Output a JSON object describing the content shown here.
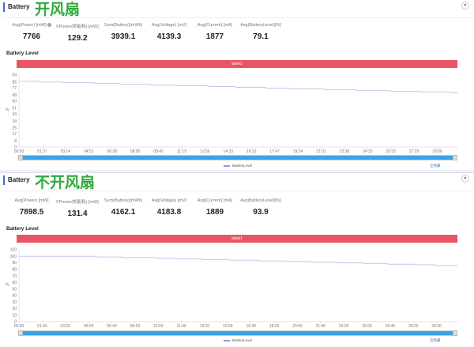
{
  "panels": [
    {
      "title": "Battery",
      "annotation": "开风扇",
      "stats": [
        {
          "label": "Avg(Power) [mW]",
          "value": "7766",
          "help_icon": "question-circle-icon"
        },
        {
          "label": "FPower(帧能耗) [mW]",
          "value": "129.2"
        },
        {
          "label": "Sum(Battery)[mWh]",
          "value": "3939.1"
        },
        {
          "label": "Avg(Voltage) [mV]",
          "value": "4139.3"
        },
        {
          "label": "Avg(Current) [mA]",
          "value": "1877"
        },
        {
          "label": "Avg(BatteryLevel)[%]",
          "value": "79.1"
        }
      ],
      "section": "Battery Level",
      "band_label": "label1",
      "legend": "BatteryLevel",
      "hide_all": "全隐藏",
      "chart_data": {
        "type": "line",
        "step": true,
        "ylabel": "%",
        "ylim": [
          0,
          94
        ],
        "yticks": [
          0,
          8,
          17,
          25,
          34,
          43,
          51,
          60,
          68,
          77,
          85,
          94
        ],
        "xticks": [
          "00:00",
          "01:37",
          "03:14",
          "04:51",
          "06:28",
          "08:05",
          "09:42",
          "11:19",
          "12:56",
          "14:33",
          "16:10",
          "17:47",
          "19:24",
          "21:01",
          "22:38",
          "24:15",
          "25:52",
          "27:29",
          "29:06"
        ],
        "xmax_s": 1833,
        "series": [
          {
            "name": "BatteryLevel",
            "color": "#c9c6ec",
            "points": [
              [
                0,
                86
              ],
              [
                150,
                85
              ],
              [
                320,
                84
              ],
              [
                545,
                83
              ],
              [
                735,
                82
              ],
              [
                960,
                81
              ],
              [
                1145,
                80
              ],
              [
                1380,
                79
              ],
              [
                1580,
                78
              ],
              [
                1800,
                77
              ],
              [
                1980,
                76
              ],
              [
                2230,
                75
              ],
              [
                2460,
                74
              ],
              [
                2700,
                73
              ],
              [
                2920,
                72
              ],
              [
                3150,
                71
              ]
            ],
            "time_unit": "scaled"
          }
        ]
      }
    },
    {
      "title": "Battery",
      "annotation": "不开风扇",
      "stats": [
        {
          "label": "Avg(Power) [mW]",
          "value": "7898.5"
        },
        {
          "label": "FPower(帧能耗) [mW]",
          "value": "131.4"
        },
        {
          "label": "Sum(Battery)[mWh]",
          "value": "4162.1"
        },
        {
          "label": "Avg(Voltage) [mV]",
          "value": "4183.8"
        },
        {
          "label": "Avg(Current) [mA]",
          "value": "1889"
        },
        {
          "label": "Avg(BatteryLevel)[%]",
          "value": "93.9"
        }
      ],
      "section": "Battery Level",
      "band_label": "label1",
      "legend": "BatteryLevel",
      "hide_all": "全隐藏",
      "chart_data": {
        "type": "line",
        "step": true,
        "ylabel": "%",
        "ylim": [
          0,
          110
        ],
        "yticks": [
          0,
          10,
          20,
          30,
          40,
          50,
          60,
          70,
          80,
          90,
          100,
          110
        ],
        "xticks": [
          "00:00",
          "01:40",
          "03:20",
          "05:00",
          "06:40",
          "08:20",
          "10:00",
          "11:40",
          "13:20",
          "15:00",
          "16:40",
          "18:20",
          "20:00",
          "21:40",
          "23:20",
          "25:00",
          "26:40",
          "28:20",
          "30:00"
        ],
        "xmax_s": 1893,
        "series": [
          {
            "name": "BatteryLevel",
            "color": "#c9c6ec",
            "points": [
              [
                0,
                100
              ],
              [
                333,
                99
              ],
              [
                445,
                98
              ],
              [
                590,
                97
              ],
              [
                680,
                96
              ],
              [
                790,
                95
              ],
              [
                910,
                94
              ],
              [
                1030,
                93
              ],
              [
                1150,
                92
              ],
              [
                1255,
                91
              ],
              [
                1370,
                90
              ],
              [
                1480,
                89
              ],
              [
                1590,
                88
              ],
              [
                1700,
                87
              ],
              [
                1790,
                86
              ]
            ]
          }
        ]
      }
    }
  ]
}
